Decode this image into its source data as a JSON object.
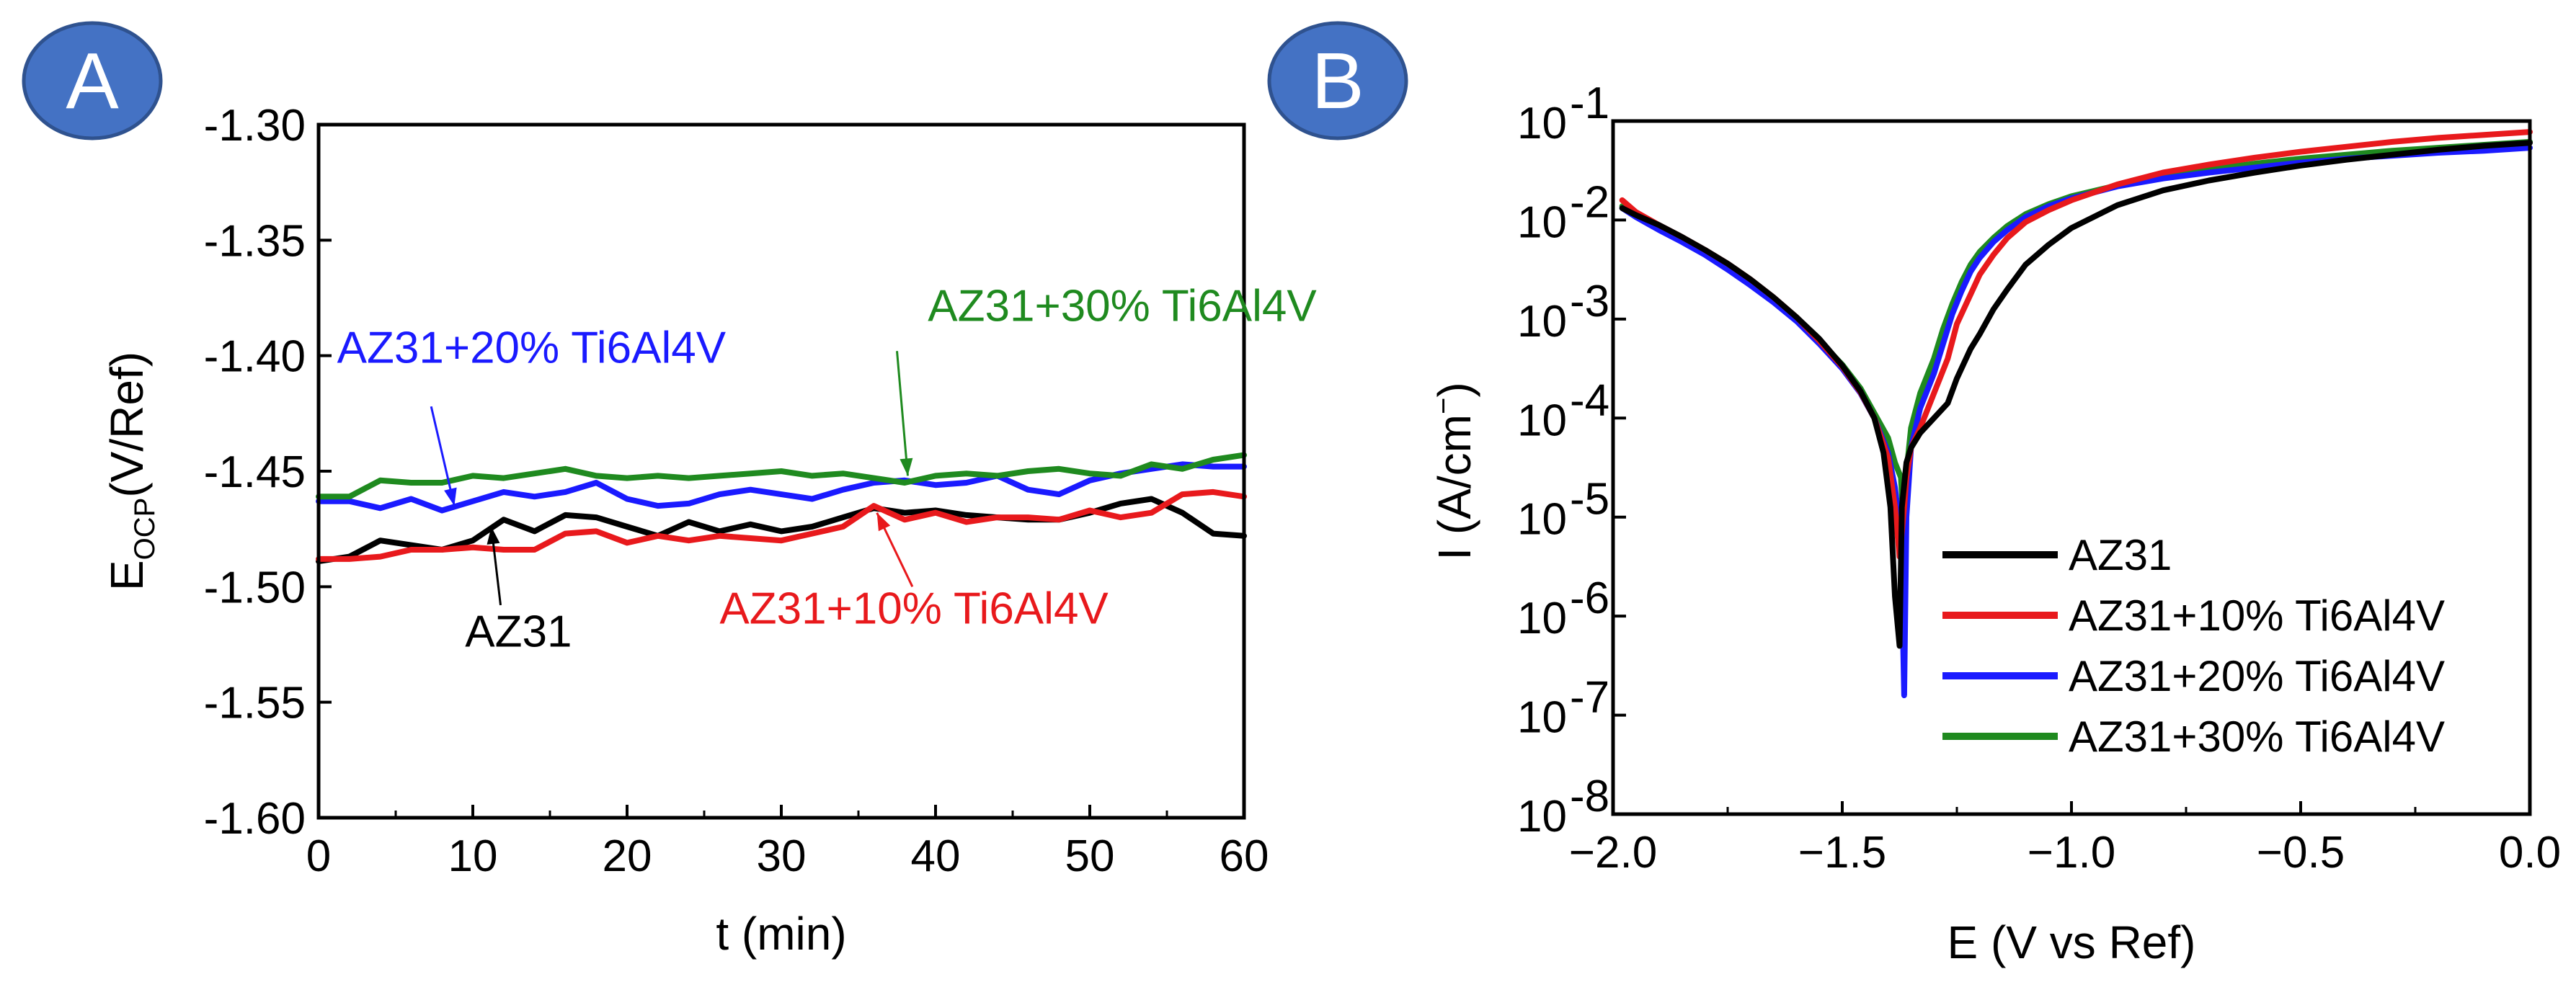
{
  "colors": {
    "az31": "#000000",
    "ti10": "#e8191c",
    "ti20": "#1a1aff",
    "ti30": "#1f8a1f",
    "badge_fill": "#4472c4",
    "badge_stroke": "#2f528f"
  },
  "panels": {
    "a_label": "A",
    "b_label": "B"
  },
  "chart_data": [
    {
      "id": "A",
      "type": "line",
      "title": "",
      "xlabel": "t (min)",
      "ylabel": {
        "main": "E",
        "sub": "OCP",
        "unit": "(V/Ref)"
      },
      "xlim": [
        0,
        60
      ],
      "ylim": [
        -1.6,
        -1.3
      ],
      "xticks": [
        0,
        10,
        20,
        30,
        40,
        50,
        60
      ],
      "yticks": [
        -1.3,
        -1.35,
        -1.4,
        -1.45,
        -1.5,
        -1.55,
        -1.6
      ],
      "xtick_labels": [
        "0",
        "10",
        "20",
        "30",
        "40",
        "50",
        "60"
      ],
      "ytick_labels": [
        "-1.30",
        "-1.35",
        "-1.40",
        "-1.45",
        "-1.50",
        "-1.55",
        "-1.60"
      ],
      "series": [
        {
          "name": "AZ31",
          "color": "#000000",
          "x": [
            0,
            2,
            4,
            6,
            8,
            10,
            12,
            14,
            16,
            18,
            20,
            22,
            24,
            26,
            28,
            30,
            32,
            34,
            36,
            38,
            40,
            42,
            44,
            46,
            48,
            50,
            52,
            54,
            56,
            58,
            60
          ],
          "y": [
            -1.489,
            -1.487,
            -1.48,
            -1.482,
            -1.484,
            -1.48,
            -1.471,
            -1.476,
            -1.469,
            -1.47,
            -1.474,
            -1.478,
            -1.472,
            -1.476,
            -1.473,
            -1.476,
            -1.474,
            -1.47,
            -1.466,
            -1.468,
            -1.467,
            -1.469,
            -1.47,
            -1.471,
            -1.471,
            -1.468,
            -1.464,
            -1.462,
            -1.468,
            -1.477,
            -1.478
          ]
        },
        {
          "name": "AZ31+10% Ti6Al4V",
          "color": "#e8191c",
          "x": [
            0,
            2,
            4,
            6,
            8,
            10,
            12,
            14,
            16,
            18,
            20,
            22,
            24,
            26,
            28,
            30,
            32,
            34,
            36,
            38,
            40,
            42,
            44,
            46,
            48,
            50,
            52,
            54,
            56,
            58,
            60
          ],
          "y": [
            -1.488,
            -1.488,
            -1.487,
            -1.484,
            -1.484,
            -1.483,
            -1.484,
            -1.484,
            -1.477,
            -1.476,
            -1.481,
            -1.478,
            -1.48,
            -1.478,
            -1.479,
            -1.48,
            -1.477,
            -1.474,
            -1.465,
            -1.471,
            -1.468,
            -1.472,
            -1.47,
            -1.47,
            -1.471,
            -1.467,
            -1.47,
            -1.468,
            -1.46,
            -1.459,
            -1.461
          ]
        },
        {
          "name": "AZ31+20% Ti6Al4V",
          "color": "#1a1aff",
          "x": [
            0,
            2,
            4,
            6,
            8,
            10,
            12,
            14,
            16,
            18,
            20,
            22,
            24,
            26,
            28,
            30,
            32,
            34,
            36,
            38,
            40,
            42,
            44,
            46,
            48,
            50,
            52,
            54,
            56,
            58,
            60
          ],
          "y": [
            -1.463,
            -1.463,
            -1.466,
            -1.462,
            -1.467,
            -1.463,
            -1.459,
            -1.461,
            -1.459,
            -1.455,
            -1.462,
            -1.465,
            -1.464,
            -1.46,
            -1.458,
            -1.46,
            -1.462,
            -1.458,
            -1.455,
            -1.454,
            -1.456,
            -1.455,
            -1.452,
            -1.458,
            -1.46,
            -1.454,
            -1.451,
            -1.449,
            -1.447,
            -1.448,
            -1.448
          ]
        },
        {
          "name": "AZ31+30% Ti6Al4V",
          "color": "#1f8a1f",
          "x": [
            0,
            2,
            4,
            6,
            8,
            10,
            12,
            14,
            16,
            18,
            20,
            22,
            24,
            26,
            28,
            30,
            32,
            34,
            36,
            38,
            40,
            42,
            44,
            46,
            48,
            50,
            52,
            54,
            56,
            58,
            60
          ],
          "y": [
            -1.461,
            -1.461,
            -1.454,
            -1.455,
            -1.455,
            -1.452,
            -1.453,
            -1.451,
            -1.449,
            -1.452,
            -1.453,
            -1.452,
            -1.453,
            -1.452,
            -1.451,
            -1.45,
            -1.452,
            -1.451,
            -1.453,
            -1.455,
            -1.452,
            -1.451,
            -1.452,
            -1.45,
            -1.449,
            -1.451,
            -1.452,
            -1.447,
            -1.449,
            -1.445,
            -1.443
          ]
        }
      ],
      "annotations": [
        {
          "text": "AZ31+30% Ti6Al4V",
          "color": "#1f8a1f",
          "text_at": [
            39.5,
            -1.385
          ],
          "arrow_from": [
            37.5,
            -1.398
          ],
          "arrow_to": [
            38.2,
            -1.452
          ]
        },
        {
          "text": "AZ31+20% Ti6Al4V",
          "color": "#1a1aff",
          "text_at": [
            1.2,
            -1.403
          ],
          "arrow_from": [
            7.3,
            -1.422
          ],
          "arrow_to": [
            8.8,
            -1.465
          ]
        },
        {
          "text": "AZ31",
          "color": "#000000",
          "text_at": [
            9.5,
            -1.526
          ],
          "arrow_from": [
            11.8,
            -1.508
          ],
          "arrow_to": [
            11.2,
            -1.474
          ]
        },
        {
          "text": "AZ31+10% Ti6Al4V",
          "color": "#e8191c",
          "text_at": [
            26.0,
            -1.516
          ],
          "arrow_from": [
            38.5,
            -1.5
          ],
          "arrow_to": [
            36.2,
            -1.468
          ]
        }
      ]
    },
    {
      "id": "B",
      "type": "line",
      "title": "",
      "xlabel": "E (V vs Ref)",
      "ylabel": {
        "main": "I (A/cm",
        "sup": "−",
        "close": ")"
      },
      "xlim": [
        -2.0,
        0.0
      ],
      "ylim_log10": [
        -8,
        -1
      ],
      "xticks": [
        -2.0,
        -1.5,
        -1.0,
        -0.5,
        0.0
      ],
      "xtick_labels": [
        "−2.0",
        "−1.5",
        "−1.0",
        "−0.5",
        "0.0"
      ],
      "yticks_exp": [
        -1,
        -2,
        -3,
        -4,
        -5,
        -6,
        -7,
        -8
      ],
      "ytick_base": "10",
      "ytick_exp_labels": [
        "-1",
        "-2",
        "-3",
        "-4",
        "-5",
        "-6",
        "-7",
        "-8"
      ],
      "legend_position": "lower-right",
      "series": [
        {
          "name": "AZ31",
          "color": "#000000",
          "x": [
            -1.98,
            -1.95,
            -1.9,
            -1.85,
            -1.8,
            -1.75,
            -1.7,
            -1.65,
            -1.6,
            -1.55,
            -1.5,
            -1.46,
            -1.43,
            -1.41,
            -1.395,
            -1.385,
            -1.375,
            -1.37,
            -1.36,
            -1.35,
            -1.33,
            -1.3,
            -1.27,
            -1.25,
            -1.22,
            -1.2,
            -1.17,
            -1.14,
            -1.1,
            -1.05,
            -1.0,
            -0.9,
            -0.8,
            -0.7,
            -0.6,
            -0.5,
            -0.4,
            -0.3,
            -0.2,
            -0.1,
            0.0
          ],
          "logI": [
            -1.88,
            -1.95,
            -2.05,
            -2.17,
            -2.3,
            -2.44,
            -2.6,
            -2.78,
            -2.98,
            -3.2,
            -3.47,
            -3.73,
            -4.0,
            -4.35,
            -4.9,
            -5.8,
            -6.3,
            -4.9,
            -4.45,
            -4.3,
            -4.15,
            -4.0,
            -3.85,
            -3.6,
            -3.3,
            -3.15,
            -2.9,
            -2.7,
            -2.45,
            -2.25,
            -2.08,
            -1.85,
            -1.7,
            -1.6,
            -1.52,
            -1.45,
            -1.39,
            -1.34,
            -1.29,
            -1.25,
            -1.22
          ]
        },
        {
          "name": "AZ31+10% Ti6Al4V",
          "color": "#e8191c",
          "x": [
            -1.98,
            -1.95,
            -1.9,
            -1.85,
            -1.8,
            -1.75,
            -1.7,
            -1.65,
            -1.6,
            -1.55,
            -1.5,
            -1.46,
            -1.43,
            -1.4,
            -1.385,
            -1.375,
            -1.365,
            -1.36,
            -1.35,
            -1.33,
            -1.3,
            -1.27,
            -1.25,
            -1.22,
            -1.2,
            -1.17,
            -1.14,
            -1.1,
            -1.05,
            -1.0,
            -0.9,
            -0.8,
            -0.7,
            -0.6,
            -0.5,
            -0.4,
            -0.3,
            -0.2,
            -0.1,
            0.0
          ],
          "logI": [
            -1.8,
            -1.92,
            -2.05,
            -2.17,
            -2.3,
            -2.44,
            -2.6,
            -2.78,
            -2.98,
            -3.22,
            -3.48,
            -3.74,
            -4.0,
            -4.4,
            -4.9,
            -5.4,
            -4.9,
            -4.6,
            -4.3,
            -4.1,
            -3.75,
            -3.4,
            -3.05,
            -2.75,
            -2.55,
            -2.35,
            -2.18,
            -2.02,
            -1.9,
            -1.8,
            -1.64,
            -1.52,
            -1.44,
            -1.37,
            -1.31,
            -1.26,
            -1.21,
            -1.17,
            -1.14,
            -1.11
          ]
        },
        {
          "name": "AZ31+20% Ti6Al4V",
          "color": "#1a1aff",
          "x": [
            -1.98,
            -1.95,
            -1.9,
            -1.85,
            -1.8,
            -1.75,
            -1.7,
            -1.65,
            -1.6,
            -1.55,
            -1.5,
            -1.46,
            -1.43,
            -1.4,
            -1.385,
            -1.372,
            -1.365,
            -1.36,
            -1.35,
            -1.33,
            -1.3,
            -1.28,
            -1.26,
            -1.24,
            -1.22,
            -1.2,
            -1.17,
            -1.14,
            -1.1,
            -1.05,
            -1.0,
            -0.9,
            -0.8,
            -0.7,
            -0.6,
            -0.5,
            -0.4,
            -0.3,
            -0.2,
            -0.1,
            0.0
          ],
          "logI": [
            -1.88,
            -1.97,
            -2.1,
            -2.22,
            -2.35,
            -2.5,
            -2.66,
            -2.83,
            -3.02,
            -3.25,
            -3.5,
            -3.75,
            -4.0,
            -4.35,
            -4.7,
            -5.2,
            -6.8,
            -5.0,
            -4.3,
            -3.9,
            -3.55,
            -3.25,
            -2.95,
            -2.72,
            -2.52,
            -2.38,
            -2.22,
            -2.1,
            -1.97,
            -1.86,
            -1.78,
            -1.66,
            -1.58,
            -1.52,
            -1.47,
            -1.42,
            -1.38,
            -1.35,
            -1.32,
            -1.3,
            -1.27
          ]
        },
        {
          "name": "AZ31+30% Ti6Al4V",
          "color": "#1f8a1f",
          "x": [
            -1.98,
            -1.95,
            -1.9,
            -1.85,
            -1.8,
            -1.75,
            -1.7,
            -1.65,
            -1.6,
            -1.55,
            -1.5,
            -1.46,
            -1.43,
            -1.4,
            -1.385,
            -1.372,
            -1.365,
            -1.36,
            -1.35,
            -1.33,
            -1.3,
            -1.28,
            -1.26,
            -1.24,
            -1.22,
            -1.2,
            -1.17,
            -1.14,
            -1.1,
            -1.05,
            -1.0,
            -0.9,
            -0.8,
            -0.7,
            -0.6,
            -0.5,
            -0.4,
            -0.3,
            -0.2,
            -0.1,
            0.0
          ],
          "logI": [
            -1.86,
            -1.95,
            -2.07,
            -2.2,
            -2.34,
            -2.48,
            -2.64,
            -2.82,
            -3.0,
            -3.22,
            -3.46,
            -3.7,
            -3.95,
            -4.2,
            -4.45,
            -4.6,
            -5.2,
            -4.55,
            -4.1,
            -3.75,
            -3.4,
            -3.1,
            -2.85,
            -2.63,
            -2.45,
            -2.32,
            -2.18,
            -2.06,
            -1.94,
            -1.84,
            -1.76,
            -1.65,
            -1.56,
            -1.49,
            -1.43,
            -1.38,
            -1.34,
            -1.3,
            -1.27,
            -1.24,
            -1.21
          ]
        }
      ]
    }
  ]
}
